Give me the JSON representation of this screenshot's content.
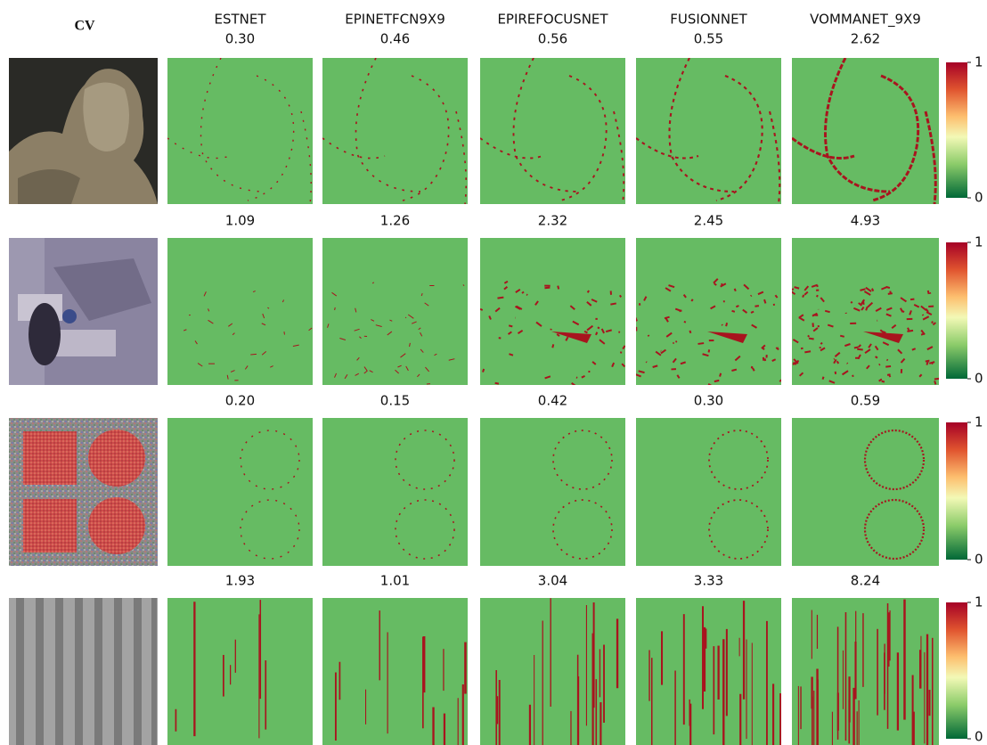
{
  "columns": [
    "CV",
    "ESTNET",
    "EPINETFCN9X9",
    "EPIREFOCUSNET",
    "FUSIONNET",
    "VOMMANET_9X9"
  ],
  "rows": [
    {
      "scores": [
        "0.30",
        "0.46",
        "0.56",
        "0.55",
        "2.62"
      ]
    },
    {
      "scores": [
        "1.09",
        "1.26",
        "2.32",
        "2.45",
        "4.93"
      ]
    },
    {
      "scores": [
        "0.20",
        "0.15",
        "0.42",
        "0.30",
        "0.59"
      ]
    },
    {
      "scores": [
        "1.93",
        "1.01",
        "3.04",
        "3.33",
        "8.24"
      ]
    }
  ],
  "colorbar": {
    "max_label": "1",
    "min_label": "0"
  }
}
